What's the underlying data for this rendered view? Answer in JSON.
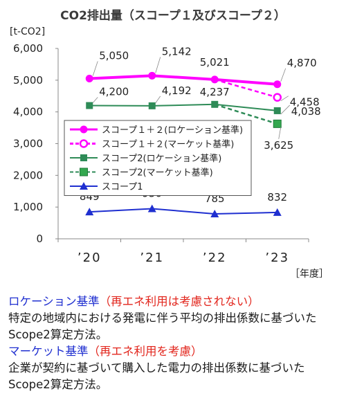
{
  "chart_data": {
    "type": "line",
    "title": "CO2排出量（スコープ１及びスコープ２）",
    "ylabel": "[t-CO2]",
    "xlabel": "［年度］",
    "categories": [
      "’20",
      "’21",
      "’22",
      "’23"
    ],
    "y_ticks": [
      "0",
      "1,000",
      "2,000",
      "3,000",
      "4,000",
      "5,000",
      "6,000"
    ],
    "ylim": [
      0,
      6000
    ],
    "grid": false,
    "legend_position": "left-center",
    "series": [
      {
        "name": "スコープ１＋２(ロケーション基準)",
        "color": "#ff00ff",
        "dash": false,
        "marker": "circle",
        "values": [
          5050,
          5142,
          5021,
          4870
        ],
        "labels": [
          "5,050",
          "5,142",
          "5,021",
          "4,870"
        ]
      },
      {
        "name": "スコープ１＋２(マーケット基準)",
        "color": "#ff00ff",
        "dash": true,
        "marker": "circle-open",
        "values": [
          5050,
          5142,
          5021,
          4458
        ],
        "labels": [
          "",
          "",
          "",
          "4,458"
        ]
      },
      {
        "name": "スコープ2(ロケーション基準)",
        "color": "#2e8b57",
        "dash": false,
        "marker": "square",
        "values": [
          4200,
          4192,
          4237,
          4038
        ],
        "labels": [
          "4,200",
          "4,192",
          "4,237",
          "4,038"
        ]
      },
      {
        "name": "スコープ2(マーケット基準)",
        "color": "#2e8b57",
        "dash": true,
        "marker": "square-light",
        "values": [
          4200,
          4192,
          4237,
          3625
        ],
        "labels": [
          "",
          "",
          "",
          "3,625"
        ]
      },
      {
        "name": "スコープ1",
        "color": "#1f2fd0",
        "dash": false,
        "marker": "triangle",
        "values": [
          849,
          950,
          785,
          832
        ],
        "labels": [
          "849",
          "950",
          "785",
          "832"
        ]
      }
    ]
  },
  "notes": {
    "location_head": "ロケーション基準",
    "location_paren": "（再エネ利用は考慮されない）",
    "location_body": "特定の地域内における発電に伴う平均の排出係数に基づいたScope2算定方法。",
    "market_head": "マーケット基準",
    "market_paren": "（再エネ利用を考慮）",
    "market_body": "企業が契約に基づいて購入した電力の排出係数に基づいたScope2算定方法。"
  }
}
